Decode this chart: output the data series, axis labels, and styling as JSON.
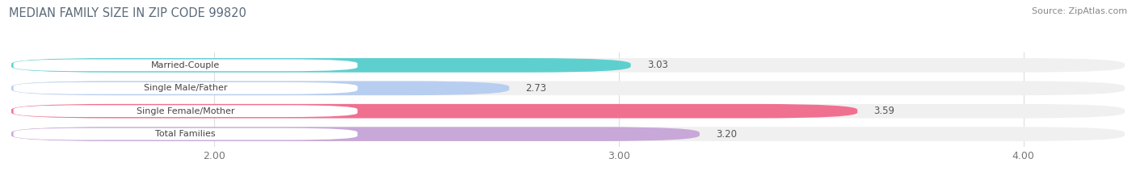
{
  "title": "MEDIAN FAMILY SIZE IN ZIP CODE 99820",
  "source": "Source: ZipAtlas.com",
  "categories": [
    "Married-Couple",
    "Single Male/Father",
    "Single Female/Mother",
    "Total Families"
  ],
  "values": [
    3.03,
    2.73,
    3.59,
    3.2
  ],
  "bar_colors": [
    "#5ecfcf",
    "#b8cef0",
    "#f07090",
    "#c8a8d8"
  ],
  "bg_color": "#ffffff",
  "row_bg_color": "#f0f0f0",
  "xlim_min": 1.5,
  "xlim_max": 4.25,
  "xticks": [
    2.0,
    3.0,
    4.0
  ],
  "xtick_labels": [
    "2.00",
    "3.00",
    "4.00"
  ],
  "bar_height": 0.62,
  "figsize": [
    14.06,
    2.33
  ],
  "dpi": 100,
  "title_color": "#5a6a7a",
  "source_color": "#888888",
  "label_text_color": "#444444",
  "value_text_color": "#555555",
  "grid_color": "#dddddd"
}
